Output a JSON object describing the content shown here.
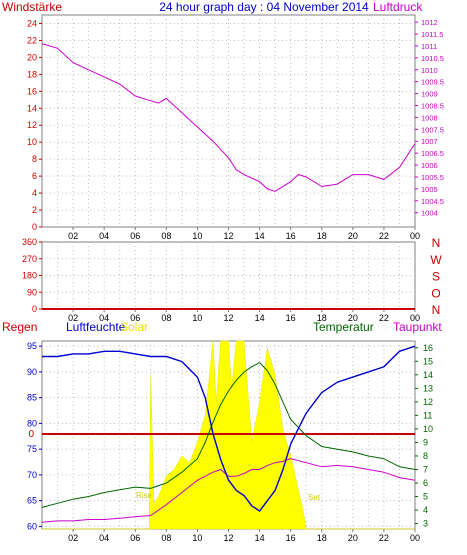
{
  "header": {
    "left_label": "Windstärke",
    "title": "24 hour graph day : 04 November 2014",
    "right_label": "Luftdruck"
  },
  "colors": {
    "border": "#808080",
    "grid": "#c0c0c0",
    "axis_red": "#cc0000",
    "pressure": "#cc00cc",
    "humidity": "#0000cc",
    "solar": "#ffff00",
    "temperature": "#006600",
    "dewpoint": "#cc00cc",
    "rain": "#cc0000"
  },
  "chart_data": [
    {
      "type": "line",
      "panel": "wind-pressure",
      "xticks": [
        "02",
        "04",
        "06",
        "08",
        "10",
        "12",
        "14",
        "16",
        "18",
        "20",
        "22",
        "00"
      ],
      "left_axis": {
        "label": "Windstärke",
        "range": [
          0,
          25
        ],
        "ticks": [
          0,
          2,
          4,
          6,
          8,
          10,
          12,
          14,
          16,
          18,
          20,
          22,
          24
        ]
      },
      "right_axis": {
        "label": "Luftdruck",
        "range": [
          1003.4,
          1012.3
        ],
        "ticks": [
          "1004",
          "1004.5",
          "1005",
          "1005.5",
          "1006",
          "1006.5",
          "1007",
          "1007.5",
          "1008",
          "1008.5",
          "1009",
          "1009.5",
          "1010",
          "1010.5",
          "1011",
          "1011.5",
          "1012"
        ]
      },
      "grid": true,
      "series": [
        {
          "name": "Luftdruck",
          "axis": "right",
          "x": [
            0,
            1,
            2,
            3,
            4,
            5,
            6,
            7,
            7.5,
            8,
            9,
            10,
            11,
            12,
            12.5,
            13,
            14,
            14.5,
            15,
            16,
            16.5,
            17,
            18,
            19,
            20,
            21,
            22,
            23,
            24
          ],
          "values": [
            1011.1,
            1010.9,
            1010.3,
            1010,
            1009.7,
            1009.4,
            1008.9,
            1008.7,
            1008.6,
            1008.8,
            1008.2,
            1007.6,
            1007,
            1006.3,
            1005.8,
            1005.6,
            1005.3,
            1005.0,
            1004.9,
            1005.3,
            1005.6,
            1005.5,
            1005.1,
            1005.2,
            1005.6,
            1005.6,
            1005.4,
            1005.9,
            1006.9
          ]
        }
      ]
    },
    {
      "type": "scatter",
      "panel": "wind-direction",
      "xticks": [
        "02",
        "04",
        "06",
        "08",
        "10",
        "12",
        "14",
        "16",
        "18",
        "20",
        "22",
        "00"
      ],
      "left_axis": {
        "range": [
          0,
          360
        ],
        "ticks": [
          0,
          90,
          180,
          270,
          360
        ]
      },
      "right_axis_labels": [
        "N",
        "W",
        "S",
        "O",
        "N"
      ],
      "grid": true,
      "series": [
        {
          "name": "Windrichtung",
          "x": [
            0,
            24
          ],
          "values": [
            0,
            0
          ]
        }
      ]
    },
    {
      "type": "line",
      "panel": "climate",
      "xticks": [
        "02",
        "04",
        "06",
        "08",
        "10",
        "12",
        "14",
        "16",
        "18",
        "20",
        "22",
        "00"
      ],
      "left_axis": {
        "label": "Luftfeuchte",
        "range": [
          59.5,
          96
        ],
        "ticks": [
          60,
          65,
          70,
          75,
          80,
          85,
          90,
          95
        ]
      },
      "right_axis": {
        "label": "Temperatur",
        "range": [
          2.6,
          16.5
        ],
        "ticks": [
          3,
          4,
          5,
          6,
          7,
          8,
          9,
          10,
          11,
          12,
          13,
          14,
          15,
          16
        ]
      },
      "rain_axis": {
        "label": "Regen",
        "ticks": [
          "0"
        ]
      },
      "legend": [
        "Regen",
        "Luftfeuchte",
        "Solar",
        "Temperatur",
        "Taupunkt"
      ],
      "annotations": {
        "sunrise": "Rise",
        "sunset": "Set"
      },
      "grid": true,
      "series": [
        {
          "name": "Luftfeuchte",
          "axis": "left",
          "x": [
            0,
            1,
            2,
            3,
            4,
            5,
            6,
            7,
            8,
            9,
            10,
            10.5,
            11,
            11.5,
            12,
            12.5,
            13,
            13.5,
            14,
            14.5,
            15,
            15.5,
            16,
            16.5,
            17,
            18,
            19,
            20,
            21,
            22,
            23,
            24
          ],
          "values": [
            93,
            93,
            93.5,
            93.5,
            94,
            94,
            93.5,
            93,
            93,
            92,
            89,
            85,
            78,
            73,
            69,
            67,
            66,
            64,
            63,
            65,
            67,
            71,
            76,
            79,
            82,
            86,
            88,
            89,
            90,
            91,
            94,
            95
          ]
        },
        {
          "name": "Temperatur",
          "axis": "right",
          "x": [
            0,
            1,
            2,
            3,
            4,
            5,
            6,
            7,
            8,
            9,
            10,
            10.5,
            11,
            11.5,
            12,
            12.5,
            13,
            13.5,
            14,
            14.5,
            15,
            15.5,
            16,
            17,
            18,
            19,
            20,
            21,
            22,
            23,
            24
          ],
          "values": [
            4.2,
            4.5,
            4.8,
            5.0,
            5.3,
            5.5,
            5.7,
            5.6,
            6.0,
            6.8,
            7.8,
            9.0,
            10.5,
            11.8,
            12.8,
            13.6,
            14.2,
            14.6,
            14.9,
            14.3,
            13.3,
            12.0,
            10.7,
            9.5,
            8.7,
            8.5,
            8.3,
            8.0,
            7.8,
            7.2,
            7.0
          ]
        },
        {
          "name": "Taupunkt",
          "axis": "right",
          "x": [
            0,
            1,
            2,
            3,
            4,
            5,
            6,
            7,
            8,
            9,
            10,
            11,
            11.5,
            12,
            12.5,
            13,
            13.5,
            14,
            14.5,
            15,
            15.5,
            16,
            17,
            18,
            19,
            20,
            21,
            22,
            23,
            24
          ],
          "values": [
            3.1,
            3.2,
            3.2,
            3.3,
            3.3,
            3.4,
            3.5,
            3.6,
            4.4,
            5.3,
            6.2,
            6.8,
            7.0,
            6.5,
            6.5,
            6.7,
            7.0,
            7.0,
            7.3,
            7.5,
            7.6,
            7.8,
            7.5,
            7.2,
            7.3,
            7.2,
            7.0,
            6.8,
            6.4,
            6.2
          ]
        },
        {
          "name": "Solar",
          "type": "area",
          "axis": "right",
          "x": [
            0,
            6.9,
            7.0,
            7.2,
            7.5,
            8,
            8.5,
            9,
            9.5,
            10,
            10.5,
            11,
            11.2,
            11.5,
            12,
            12.2,
            12.5,
            13,
            13.5,
            14,
            14.5,
            15,
            15.5,
            16,
            16.5,
            16.8,
            17,
            24
          ],
          "values": [
            2.6,
            2.6,
            14,
            4.5,
            5,
            6.5,
            7,
            8,
            7.5,
            9,
            11,
            16.5,
            12,
            16.5,
            16.5,
            13,
            16.5,
            16.5,
            9,
            12,
            16,
            14,
            10,
            8,
            5.5,
            4,
            2.6,
            2.6
          ]
        },
        {
          "name": "Regen",
          "axis": "rain",
          "x": [
            0,
            24
          ],
          "values": [
            0,
            0
          ]
        }
      ]
    }
  ]
}
